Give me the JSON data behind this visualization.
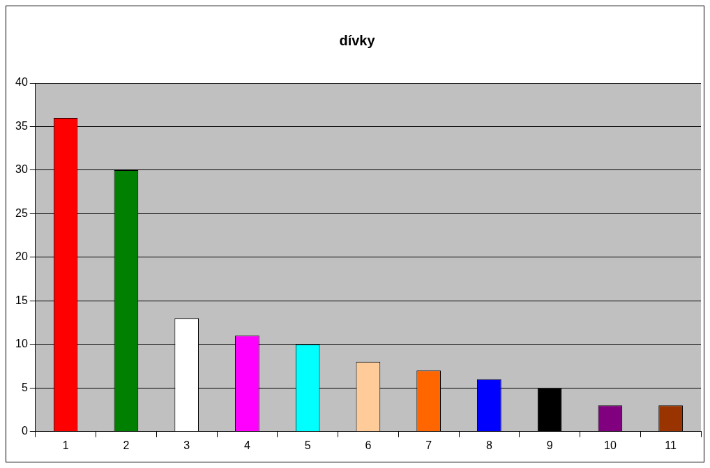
{
  "chart_data": {
    "type": "bar",
    "title": "dívky",
    "categories": [
      "1",
      "2",
      "3",
      "4",
      "5",
      "6",
      "7",
      "8",
      "9",
      "10",
      "11"
    ],
    "values": [
      36,
      30,
      13,
      11,
      10,
      8,
      7,
      6,
      5,
      3,
      3
    ],
    "colors": [
      "#ff0000",
      "#008000",
      "#ffffff",
      "#ff00ff",
      "#00ffff",
      "#ffcc99",
      "#ff6600",
      "#0000ff",
      "#000000",
      "#800080",
      "#993300"
    ],
    "ylim": [
      0,
      40
    ],
    "yticks": [
      0,
      5,
      10,
      15,
      20,
      25,
      30,
      35,
      40
    ],
    "grid": "y"
  }
}
